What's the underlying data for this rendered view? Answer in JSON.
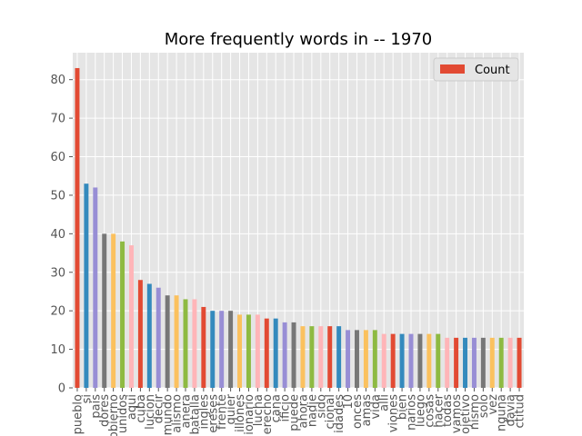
{
  "chart_data": {
    "type": "bar",
    "title": "More frequently words in -- 1970",
    "xlabel": "",
    "ylabel": "",
    "ylim": [
      0,
      87
    ],
    "yticks": [
      0,
      10,
      20,
      30,
      40,
      50,
      60,
      70,
      80
    ],
    "grid": true,
    "legend": {
      "position": "top-right",
      "label": "Count"
    },
    "colors": [
      "#E24A33",
      "#348ABD",
      "#988ED5",
      "#777777",
      "#FBC15E",
      "#8EBA42",
      "#FFB5B8"
    ],
    "background_color": "#E5E5E5",
    "grid_color": "#FFFFFF",
    "categories": [
      "pueblo",
      "si",
      "pais",
      "dores",
      "obierno",
      "unidos",
      "aqui",
      "cuba",
      "lucion",
      "decir",
      "mundo",
      "alismo",
      "anera",
      "batalla",
      "ingles",
      "ereses",
      "frente",
      "quier",
      "illones",
      "ionario",
      "lucha",
      "erecho",
      "cana",
      "ificio",
      "puede",
      "ahora",
      "nadie",
      "sido",
      "cional",
      "idades",
      "10",
      "onces",
      "amas",
      "vida",
      "alli",
      "viones",
      "bien",
      "narios",
      "luego",
      "cosas",
      "hacer",
      "todas",
      "vamos",
      "ojetivo",
      "nismo",
      "solo",
      "vez",
      "nguna",
      "davia",
      "ctitud"
    ],
    "values": [
      83,
      53,
      52,
      40,
      40,
      38,
      37,
      28,
      27,
      26,
      24,
      24,
      23,
      23,
      21,
      20,
      20,
      20,
      19,
      19,
      19,
      18,
      18,
      17,
      17,
      16,
      16,
      16,
      16,
      16,
      15,
      15,
      15,
      15,
      14,
      14,
      14,
      14,
      14,
      14,
      14,
      13,
      13,
      13,
      13,
      13,
      13,
      13,
      13,
      13
    ]
  }
}
